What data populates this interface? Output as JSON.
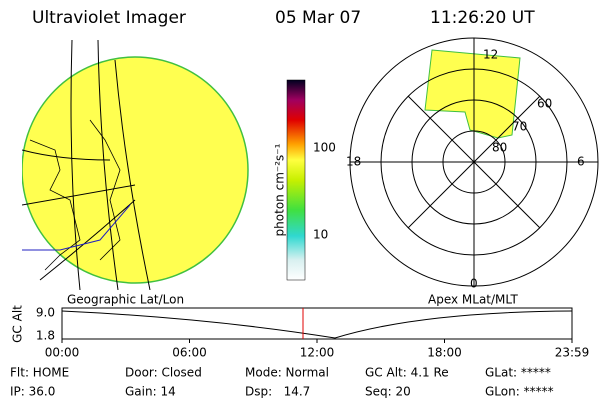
{
  "header": {
    "title": "Ultraviolet Imager",
    "date": "05 Mar 07",
    "time": "11:26:20 UT"
  },
  "colorbar": {
    "label": "photon cm⁻²s⁻¹",
    "ticks": [
      100,
      10
    ]
  },
  "polar": {
    "mlt_labels": [
      "12",
      "18",
      "6",
      "0"
    ],
    "lat_labels": [
      "60",
      "70",
      "80"
    ]
  },
  "left_label": "Geographic Lat/Lon",
  "right_label": "Apex MLat/MLT",
  "timeline": {
    "ylabel": "GC Alt",
    "yticks": [
      "9.0",
      "1.8"
    ],
    "xticks": [
      "00:00",
      "06:00",
      "12:00",
      "18:00",
      "23:59"
    ]
  },
  "footer": {
    "rows": [
      [
        "Flt: HOME",
        "Door: Closed",
        "Mode: Normal",
        "GC Alt: 4.1 Re",
        "GLat: *****"
      ],
      [
        "IP: 36.0",
        "Gain: 14",
        "Dsp:   14.7",
        "Seq: 20",
        "GLon: *****"
      ]
    ]
  }
}
